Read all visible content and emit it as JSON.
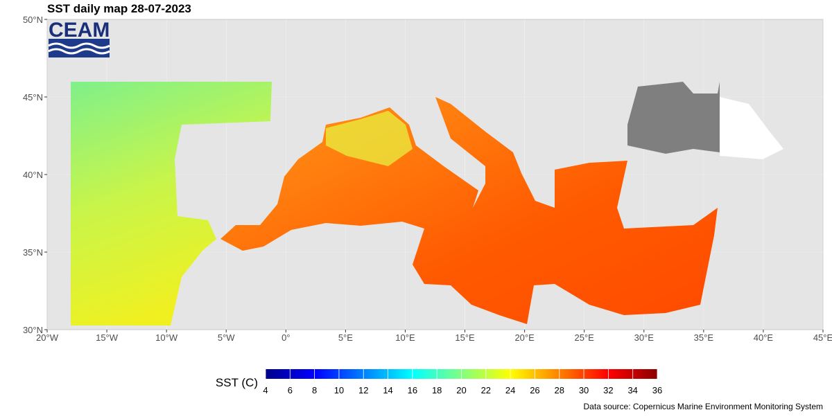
{
  "title": "SST daily map 28-07-2023",
  "logo": "CEAM",
  "map": {
    "xlim": [
      -20,
      45
    ],
    "ylim": [
      30,
      50
    ],
    "xticks": [
      {
        "value": -20,
        "label": "20°W"
      },
      {
        "value": -15,
        "label": "15°W"
      },
      {
        "value": -10,
        "label": "10°W"
      },
      {
        "value": -5,
        "label": "5°W"
      },
      {
        "value": 0,
        "label": "0°"
      },
      {
        "value": 5,
        "label": "5°E"
      },
      {
        "value": 10,
        "label": "10°E"
      },
      {
        "value": 15,
        "label": "15°E"
      },
      {
        "value": 20,
        "label": "20°E"
      },
      {
        "value": 25,
        "label": "25°E"
      },
      {
        "value": 30,
        "label": "30°E"
      },
      {
        "value": 35,
        "label": "35°E"
      },
      {
        "value": 40,
        "label": "40°E"
      },
      {
        "value": 45,
        "label": "45°E"
      }
    ],
    "yticks": [
      {
        "value": 30,
        "label": "30°N"
      },
      {
        "value": 35,
        "label": "35°N"
      },
      {
        "value": 40,
        "label": "40°N"
      },
      {
        "value": 45,
        "label": "45°N"
      },
      {
        "value": 50,
        "label": "50°N"
      }
    ]
  },
  "colorbar": {
    "label": "SST (C)",
    "lim": [
      4,
      36
    ],
    "ticks": [
      4,
      6,
      8,
      10,
      12,
      14,
      16,
      18,
      20,
      22,
      24,
      26,
      28,
      30,
      32,
      34,
      36
    ],
    "colors": [
      "#00008b",
      "#0000ff",
      "#0080ff",
      "#00ffff",
      "#80ff80",
      "#ffff00",
      "#ff8000",
      "#ff0000",
      "#8b0000"
    ]
  },
  "source": "Data source: Copernicus Marine Environment Monitoring System"
}
